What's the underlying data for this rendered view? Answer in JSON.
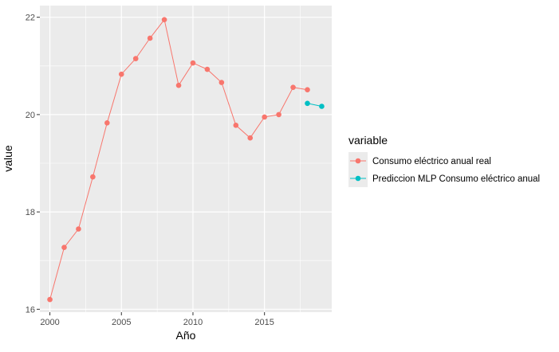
{
  "chart_data": {
    "type": "line",
    "xlabel": "Año",
    "ylabel": "value",
    "xlim": [
      1999.3,
      2019.7
    ],
    "ylim": [
      15.94,
      22.24
    ],
    "x_ticks": [
      2000,
      2005,
      2010,
      2015
    ],
    "y_ticks": [
      16,
      18,
      20,
      22
    ],
    "x_tick_labels": [
      "2000",
      "2005",
      "2010",
      "2015"
    ],
    "y_tick_labels": [
      "16",
      "18",
      "20",
      "22"
    ],
    "grid": true,
    "panel_background": "#ebebeb",
    "legend": {
      "title": "variable",
      "placement": "right",
      "entries": [
        "Consumo eléctrico anual real",
        "Prediccion MLP Consumo eléctrico anual"
      ]
    },
    "series": [
      {
        "name": "Consumo eléctrico anual real",
        "color": "#f8766d",
        "x": [
          2000,
          2001,
          2002,
          2003,
          2004,
          2005,
          2006,
          2007,
          2008,
          2009,
          2010,
          2011,
          2012,
          2013,
          2014,
          2015,
          2016,
          2017,
          2018
        ],
        "y": [
          16.2,
          17.27,
          17.65,
          18.72,
          19.83,
          20.83,
          21.15,
          21.57,
          21.95,
          20.6,
          21.06,
          20.93,
          20.66,
          19.78,
          19.52,
          19.95,
          20.0,
          20.56,
          20.51
        ]
      },
      {
        "name": "Prediccion MLP Consumo eléctrico anual",
        "color": "#00bfc4",
        "x": [
          2018,
          2019
        ],
        "y": [
          20.23,
          20.17
        ]
      }
    ]
  }
}
